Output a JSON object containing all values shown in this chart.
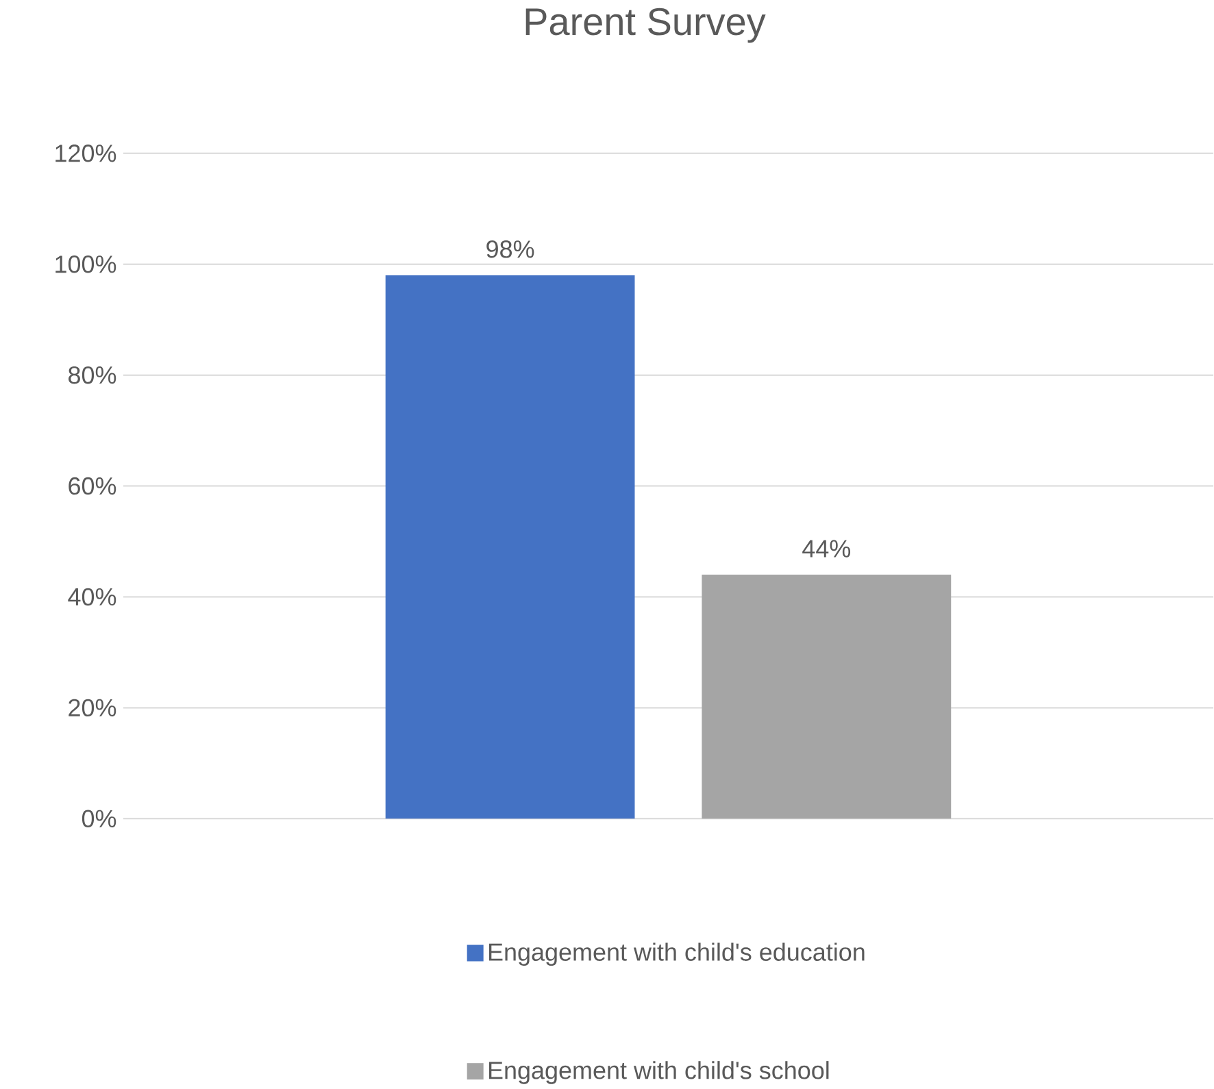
{
  "chart_data": {
    "type": "bar",
    "title": "Parent Survey",
    "categories": [
      null
    ],
    "series": [
      {
        "name": "Engagement with child's education",
        "color": "#4472c4",
        "values": [
          98
        ],
        "value_labels": [
          "98%"
        ]
      },
      {
        "name": "Engagement with child's school",
        "color": "#a5a5a5",
        "values": [
          44
        ],
        "value_labels": [
          "44%"
        ]
      }
    ],
    "ylim": [
      0,
      120
    ],
    "yticks": [
      {
        "value": 0,
        "label": "0%"
      },
      {
        "value": 20,
        "label": "20%"
      },
      {
        "value": 40,
        "label": "40%"
      },
      {
        "value": 60,
        "label": "60%"
      },
      {
        "value": 80,
        "label": "80%"
      },
      {
        "value": 100,
        "label": "100%"
      },
      {
        "value": 120,
        "label": "120%"
      }
    ],
    "grid": "y",
    "legend": "bottom"
  }
}
